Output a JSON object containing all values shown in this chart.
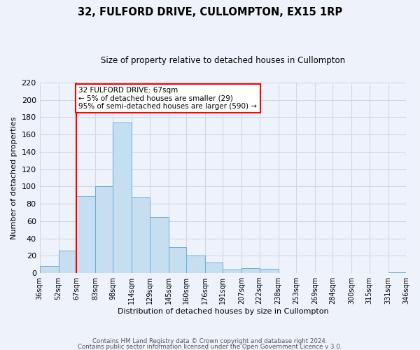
{
  "title": "32, FULFORD DRIVE, CULLOMPTON, EX15 1RP",
  "subtitle": "Size of property relative to detached houses in Cullompton",
  "xlabel": "Distribution of detached houses by size in Cullompton",
  "ylabel": "Number of detached properties",
  "bin_labels": [
    "36sqm",
    "52sqm",
    "67sqm",
    "83sqm",
    "98sqm",
    "114sqm",
    "129sqm",
    "145sqm",
    "160sqm",
    "176sqm",
    "191sqm",
    "207sqm",
    "222sqm",
    "238sqm",
    "253sqm",
    "269sqm",
    "284sqm",
    "300sqm",
    "315sqm",
    "331sqm",
    "346sqm"
  ],
  "bin_edges": [
    36,
    52,
    67,
    83,
    98,
    114,
    129,
    145,
    160,
    176,
    191,
    207,
    222,
    238,
    253,
    269,
    284,
    300,
    315,
    331,
    346
  ],
  "bar_values": [
    8,
    26,
    89,
    100,
    174,
    87,
    65,
    30,
    20,
    12,
    4,
    6,
    5,
    0,
    0,
    0,
    0,
    0,
    0,
    1
  ],
  "bar_color": "#c5dff0",
  "bar_edge_color": "#6aaed6",
  "vline_x": 67,
  "vline_color": "red",
  "annotation_title": "32 FULFORD DRIVE: 67sqm",
  "annotation_line1": "← 5% of detached houses are smaller (29)",
  "annotation_line2": "95% of semi-detached houses are larger (590) →",
  "annotation_box_color": "white",
  "annotation_box_edge": "red",
  "ylim": [
    0,
    220
  ],
  "yticks": [
    0,
    20,
    40,
    60,
    80,
    100,
    120,
    140,
    160,
    180,
    200,
    220
  ],
  "footer1": "Contains HM Land Registry data © Crown copyright and database right 2024.",
  "footer2": "Contains public sector information licensed under the Open Government Licence v 3.0.",
  "background_color": "#eef2fb",
  "grid_color": "#d0d8e8"
}
